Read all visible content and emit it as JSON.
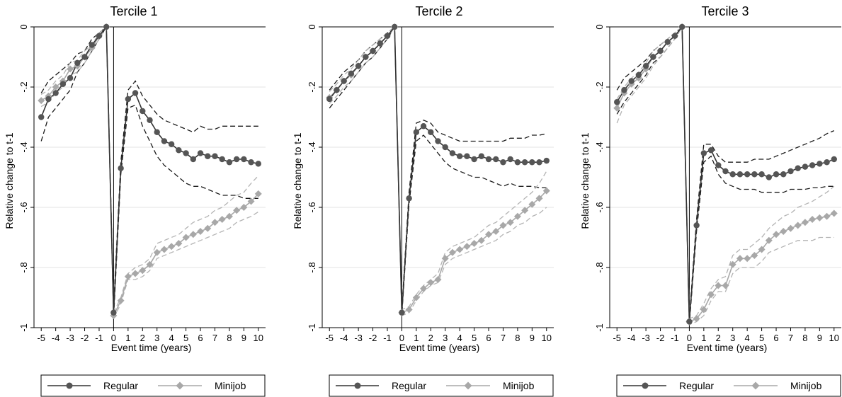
{
  "colors": {
    "regular": "#555555",
    "regular_ci": "#1a1a1a",
    "minijob": "#a8a8a8",
    "minijob_ci": "#b3b3b3",
    "grid": "#e3e3e3",
    "axis": "#000000"
  },
  "chart_data": [
    {
      "type": "line",
      "title": "Tercile 1",
      "xlabel": "Event time (years)",
      "ylabel": "Relative change to t-1",
      "xlim": [
        -5.5,
        10.5
      ],
      "ylim": [
        -1.0,
        0.0
      ],
      "x_ticks": [
        -5,
        -4,
        -3,
        -2,
        -1,
        0,
        1,
        2,
        3,
        4,
        5,
        6,
        7,
        8,
        9,
        10
      ],
      "x_tick_labels": [
        "-5",
        "-4",
        "-3",
        "-2",
        "-1",
        "0",
        "1",
        "2",
        "3",
        "4",
        "5",
        "6",
        "7",
        "8",
        "9",
        "10"
      ],
      "y_ticks": [
        0,
        -0.2,
        -0.4,
        -0.6,
        -0.8,
        -1
      ],
      "y_tick_labels": [
        "0",
        "-.2",
        "-.4",
        "-.6",
        "-.8",
        "-1"
      ],
      "grid": true,
      "legend": "bottom",
      "x": [
        -5,
        -4.5,
        -4,
        -3.5,
        -3,
        -2.5,
        -2,
        -1.5,
        -1,
        -0.5,
        0,
        0.5,
        1,
        1.5,
        2,
        2.5,
        3,
        3.5,
        4,
        4.5,
        5,
        5.5,
        6,
        6.5,
        7,
        7.5,
        8,
        8.5,
        9,
        9.5,
        10
      ],
      "series": [
        {
          "name": "Regular",
          "values": [
            -0.3,
            -0.24,
            -0.22,
            -0.19,
            -0.17,
            -0.12,
            -0.1,
            -0.06,
            -0.03,
            0,
            -0.95,
            -0.47,
            -0.24,
            -0.22,
            -0.28,
            -0.31,
            -0.35,
            -0.38,
            -0.39,
            -0.41,
            -0.42,
            -0.44,
            -0.42,
            -0.43,
            -0.43,
            -0.44,
            -0.45,
            -0.44,
            -0.44,
            -0.45,
            -0.455
          ],
          "ci_low": [
            -0.38,
            -0.3,
            -0.27,
            -0.24,
            -0.21,
            -0.15,
            -0.12,
            -0.08,
            -0.04,
            0,
            -0.97,
            -0.49,
            -0.27,
            -0.26,
            -0.33,
            -0.38,
            -0.43,
            -0.46,
            -0.48,
            -0.5,
            -0.52,
            -0.53,
            -0.53,
            -0.54,
            -0.55,
            -0.56,
            -0.56,
            -0.56,
            -0.57,
            -0.57,
            -0.57
          ],
          "ci_high": [
            -0.22,
            -0.18,
            -0.16,
            -0.14,
            -0.12,
            -0.09,
            -0.08,
            -0.04,
            -0.02,
            0,
            -0.93,
            -0.45,
            -0.21,
            -0.18,
            -0.23,
            -0.26,
            -0.29,
            -0.31,
            -0.32,
            -0.33,
            -0.34,
            -0.35,
            -0.33,
            -0.34,
            -0.34,
            -0.33,
            -0.33,
            -0.33,
            -0.33,
            -0.33,
            -0.33
          ]
        },
        {
          "name": "Minijob",
          "values": [
            -0.245,
            -0.23,
            -0.2,
            -0.18,
            -0.14,
            -0.13,
            -0.1,
            -0.07,
            -0.03,
            0,
            -0.96,
            -0.91,
            -0.83,
            -0.82,
            -0.81,
            -0.79,
            -0.75,
            -0.74,
            -0.73,
            -0.72,
            -0.7,
            -0.69,
            -0.68,
            -0.67,
            -0.65,
            -0.64,
            -0.63,
            -0.61,
            -0.6,
            -0.58,
            -0.555
          ],
          "ci_low": [
            -0.265,
            -0.25,
            -0.22,
            -0.2,
            -0.16,
            -0.15,
            -0.12,
            -0.08,
            -0.04,
            0,
            -0.97,
            -0.92,
            -0.84,
            -0.84,
            -0.83,
            -0.81,
            -0.77,
            -0.76,
            -0.75,
            -0.74,
            -0.73,
            -0.72,
            -0.71,
            -0.7,
            -0.69,
            -0.68,
            -0.67,
            -0.65,
            -0.64,
            -0.63,
            -0.615
          ],
          "ci_high": [
            -0.225,
            -0.21,
            -0.18,
            -0.16,
            -0.12,
            -0.11,
            -0.08,
            -0.06,
            -0.02,
            0,
            -0.95,
            -0.9,
            -0.82,
            -0.8,
            -0.79,
            -0.77,
            -0.72,
            -0.71,
            -0.7,
            -0.69,
            -0.67,
            -0.65,
            -0.64,
            -0.63,
            -0.61,
            -0.6,
            -0.58,
            -0.56,
            -0.55,
            -0.52,
            -0.495
          ]
        }
      ]
    },
    {
      "type": "line",
      "title": "Tercile 2",
      "xlabel": "Event time (years)",
      "ylabel": "Relative change to t-1",
      "xlim": [
        -5.5,
        10.5
      ],
      "ylim": [
        -1.0,
        0.0
      ],
      "x_ticks": [
        -5,
        -4,
        -3,
        -2,
        -1,
        0,
        1,
        2,
        3,
        4,
        5,
        6,
        7,
        8,
        9,
        10
      ],
      "x_tick_labels": [
        "-5",
        "-4",
        "-3",
        "-2",
        "-1",
        "0",
        "1",
        "2",
        "3",
        "4",
        "5",
        "6",
        "7",
        "8",
        "9",
        "10"
      ],
      "y_ticks": [
        0,
        -0.2,
        -0.4,
        -0.6,
        -0.8,
        -1
      ],
      "y_tick_labels": [
        "0",
        "-.2",
        "-.4",
        "-.6",
        "-.8",
        "-1"
      ],
      "grid": true,
      "legend": "bottom",
      "x": [
        -5,
        -4.5,
        -4,
        -3.5,
        -3,
        -2.5,
        -2,
        -1.5,
        -1,
        -0.5,
        0,
        0.5,
        1,
        1.5,
        2,
        2.5,
        3,
        3.5,
        4,
        4.5,
        5,
        5.5,
        6,
        6.5,
        7,
        7.5,
        8,
        8.5,
        9,
        9.5,
        10
      ],
      "series": [
        {
          "name": "Regular",
          "values": [
            -0.24,
            -0.21,
            -0.18,
            -0.155,
            -0.13,
            -0.1,
            -0.08,
            -0.055,
            -0.03,
            0,
            -0.95,
            -0.57,
            -0.35,
            -0.33,
            -0.35,
            -0.38,
            -0.4,
            -0.42,
            -0.43,
            -0.43,
            -0.44,
            -0.43,
            -0.44,
            -0.44,
            -0.45,
            -0.44,
            -0.45,
            -0.45,
            -0.45,
            -0.45,
            -0.445
          ],
          "ci_low": [
            -0.27,
            -0.24,
            -0.21,
            -0.18,
            -0.15,
            -0.12,
            -0.1,
            -0.07,
            -0.04,
            0,
            -0.96,
            -0.59,
            -0.38,
            -0.36,
            -0.39,
            -0.42,
            -0.45,
            -0.47,
            -0.48,
            -0.49,
            -0.5,
            -0.5,
            -0.51,
            -0.52,
            -0.53,
            -0.52,
            -0.53,
            -0.53,
            -0.53,
            -0.535,
            -0.535
          ],
          "ci_high": [
            -0.21,
            -0.18,
            -0.15,
            -0.13,
            -0.11,
            -0.08,
            -0.06,
            -0.04,
            -0.02,
            0,
            -0.94,
            -0.55,
            -0.32,
            -0.31,
            -0.32,
            -0.35,
            -0.36,
            -0.37,
            -0.38,
            -0.38,
            -0.38,
            -0.38,
            -0.38,
            -0.38,
            -0.38,
            -0.37,
            -0.37,
            -0.37,
            -0.36,
            -0.36,
            -0.355
          ]
        },
        {
          "name": "Minijob",
          "values": [
            -0.235,
            -0.21,
            -0.18,
            -0.16,
            -0.13,
            -0.1,
            -0.08,
            -0.055,
            -0.03,
            0,
            -0.95,
            -0.94,
            -0.9,
            -0.87,
            -0.85,
            -0.84,
            -0.77,
            -0.75,
            -0.74,
            -0.73,
            -0.72,
            -0.71,
            -0.69,
            -0.68,
            -0.66,
            -0.65,
            -0.63,
            -0.61,
            -0.59,
            -0.57,
            -0.545
          ],
          "ci_low": [
            -0.255,
            -0.23,
            -0.2,
            -0.18,
            -0.15,
            -0.12,
            -0.1,
            -0.07,
            -0.04,
            0,
            -0.96,
            -0.95,
            -0.91,
            -0.88,
            -0.86,
            -0.85,
            -0.79,
            -0.77,
            -0.76,
            -0.75,
            -0.74,
            -0.73,
            -0.72,
            -0.71,
            -0.69,
            -0.68,
            -0.66,
            -0.65,
            -0.63,
            -0.62,
            -0.6
          ],
          "ci_high": [
            -0.215,
            -0.19,
            -0.16,
            -0.14,
            -0.11,
            -0.08,
            -0.06,
            -0.04,
            -0.02,
            0,
            -0.94,
            -0.93,
            -0.89,
            -0.86,
            -0.84,
            -0.82,
            -0.75,
            -0.73,
            -0.72,
            -0.71,
            -0.7,
            -0.68,
            -0.66,
            -0.65,
            -0.63,
            -0.61,
            -0.59,
            -0.57,
            -0.55,
            -0.52,
            -0.48
          ]
        }
      ]
    },
    {
      "type": "line",
      "title": "Tercile 3",
      "xlabel": "Event time (years)",
      "ylabel": "Relative change to t-1",
      "xlim": [
        -5.5,
        10.5
      ],
      "ylim": [
        -1.0,
        0.0
      ],
      "x_ticks": [
        -5,
        -4,
        -3,
        -2,
        -1,
        0,
        1,
        2,
        3,
        4,
        5,
        6,
        7,
        8,
        9,
        10
      ],
      "x_tick_labels": [
        "-5",
        "-4",
        "-3",
        "-2",
        "-1",
        "0",
        "1",
        "2",
        "3",
        "4",
        "5",
        "6",
        "7",
        "8",
        "9",
        "10"
      ],
      "y_ticks": [
        0,
        -0.2,
        -0.4,
        -0.6,
        -0.8,
        -1
      ],
      "y_tick_labels": [
        "0",
        "-.2",
        "-.4",
        "-.6",
        "-.8",
        "-1"
      ],
      "grid": true,
      "legend": "bottom",
      "x": [
        -5,
        -4.5,
        -4,
        -3.5,
        -3,
        -2.5,
        -2,
        -1.5,
        -1,
        -0.5,
        0,
        0.5,
        1,
        1.5,
        2,
        2.5,
        3,
        3.5,
        4,
        4.5,
        5,
        5.5,
        6,
        6.5,
        7,
        7.5,
        8,
        8.5,
        9,
        9.5,
        10
      ],
      "series": [
        {
          "name": "Regular",
          "values": [
            -0.25,
            -0.21,
            -0.18,
            -0.16,
            -0.13,
            -0.1,
            -0.08,
            -0.05,
            -0.03,
            0,
            -0.98,
            -0.66,
            -0.42,
            -0.41,
            -0.46,
            -0.48,
            -0.49,
            -0.49,
            -0.49,
            -0.49,
            -0.49,
            -0.5,
            -0.49,
            -0.49,
            -0.48,
            -0.47,
            -0.465,
            -0.46,
            -0.455,
            -0.45,
            -0.44
          ],
          "ci_low": [
            -0.29,
            -0.25,
            -0.22,
            -0.19,
            -0.16,
            -0.12,
            -0.1,
            -0.07,
            -0.04,
            0,
            -0.99,
            -0.68,
            -0.45,
            -0.43,
            -0.49,
            -0.52,
            -0.53,
            -0.54,
            -0.54,
            -0.54,
            -0.55,
            -0.55,
            -0.55,
            -0.55,
            -0.54,
            -0.54,
            -0.54,
            -0.535,
            -0.535,
            -0.53,
            -0.53
          ],
          "ci_high": [
            -0.21,
            -0.17,
            -0.15,
            -0.13,
            -0.11,
            -0.08,
            -0.06,
            -0.04,
            -0.02,
            0,
            -0.97,
            -0.64,
            -0.39,
            -0.39,
            -0.43,
            -0.45,
            -0.45,
            -0.45,
            -0.45,
            -0.44,
            -0.44,
            -0.44,
            -0.43,
            -0.42,
            -0.41,
            -0.4,
            -0.39,
            -0.38,
            -0.37,
            -0.355,
            -0.345
          ]
        },
        {
          "name": "Minijob",
          "values": [
            -0.27,
            -0.22,
            -0.19,
            -0.17,
            -0.14,
            -0.1,
            -0.08,
            -0.05,
            -0.03,
            0,
            -0.98,
            -0.97,
            -0.94,
            -0.89,
            -0.86,
            -0.86,
            -0.79,
            -0.77,
            -0.77,
            -0.76,
            -0.74,
            -0.71,
            -0.69,
            -0.68,
            -0.67,
            -0.66,
            -0.65,
            -0.64,
            -0.635,
            -0.63,
            -0.62
          ],
          "ci_low": [
            -0.32,
            -0.26,
            -0.23,
            -0.2,
            -0.17,
            -0.13,
            -0.1,
            -0.07,
            -0.04,
            0,
            -0.99,
            -0.98,
            -0.96,
            -0.91,
            -0.88,
            -0.88,
            -0.82,
            -0.8,
            -0.8,
            -0.8,
            -0.78,
            -0.75,
            -0.74,
            -0.73,
            -0.72,
            -0.71,
            -0.71,
            -0.71,
            -0.7,
            -0.7,
            -0.7
          ],
          "ci_high": [
            -0.24,
            -0.2,
            -0.17,
            -0.15,
            -0.12,
            -0.08,
            -0.06,
            -0.04,
            -0.02,
            0,
            -0.97,
            -0.96,
            -0.92,
            -0.87,
            -0.84,
            -0.83,
            -0.76,
            -0.74,
            -0.74,
            -0.72,
            -0.7,
            -0.67,
            -0.65,
            -0.63,
            -0.62,
            -0.6,
            -0.59,
            -0.58,
            -0.565,
            -0.55,
            -0.53
          ]
        }
      ]
    }
  ]
}
